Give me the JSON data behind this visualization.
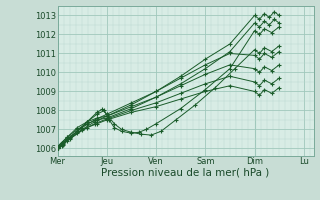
{
  "bg_color": "#c8ddd5",
  "plot_bg": "#d8ece5",
  "grid_color_major": "#a0c8bc",
  "grid_color_minor": "#b8d8ce",
  "line_color": "#1a5c2a",
  "marker": "+",
  "ylabel_ticks": [
    1006,
    1007,
    1008,
    1009,
    1010,
    1011,
    1012,
    1013
  ],
  "xlim": [
    0,
    5.2
  ],
  "ylim": [
    1005.6,
    1013.5
  ],
  "xlabel": "Pression niveau de la mer( hPa )",
  "xlabel_fontsize": 7.5,
  "tick_fontsize": 6,
  "day_labels": [
    "Mer",
    "Jeu",
    "Ven",
    "Sam",
    "Dim",
    "Lu"
  ],
  "day_positions": [
    0.0,
    1.0,
    2.0,
    3.0,
    4.0,
    5.0
  ],
  "lines": [
    {
      "x": [
        0.0,
        0.08,
        0.2,
        0.4,
        0.6,
        0.8,
        1.0,
        1.5,
        2.0,
        2.5,
        3.0,
        3.5,
        4.0,
        4.1,
        4.2,
        4.3,
        4.4,
        4.5
      ],
      "y": [
        1006.1,
        1006.3,
        1006.6,
        1007.1,
        1007.4,
        1007.6,
        1007.7,
        1008.3,
        1009.0,
        1009.8,
        1010.7,
        1011.5,
        1013.0,
        1012.8,
        1013.1,
        1012.9,
        1013.2,
        1013.0
      ]
    },
    {
      "x": [
        0.0,
        0.08,
        0.2,
        0.4,
        0.6,
        0.8,
        1.0,
        1.5,
        2.0,
        2.5,
        3.0,
        3.5,
        4.0,
        4.1,
        4.2,
        4.3,
        4.4,
        4.5
      ],
      "y": [
        1006.1,
        1006.3,
        1006.6,
        1007.0,
        1007.3,
        1007.5,
        1007.6,
        1008.1,
        1008.7,
        1009.4,
        1010.2,
        1011.1,
        1012.6,
        1012.4,
        1012.7,
        1012.5,
        1012.8,
        1012.6
      ]
    },
    {
      "x": [
        0.0,
        0.08,
        0.2,
        0.4,
        0.6,
        0.8,
        0.95,
        1.05,
        1.15,
        1.3,
        1.5,
        1.65,
        1.8,
        2.0,
        2.5,
        3.0,
        3.5,
        4.0,
        4.1,
        4.2,
        4.35,
        4.5
      ],
      "y": [
        1006.0,
        1006.2,
        1006.5,
        1006.9,
        1007.4,
        1007.8,
        1008.0,
        1007.5,
        1007.1,
        1006.9,
        1006.8,
        1006.85,
        1007.0,
        1007.3,
        1008.1,
        1009.1,
        1010.2,
        1012.2,
        1012.0,
        1012.3,
        1012.1,
        1012.4
      ]
    },
    {
      "x": [
        0.0,
        0.08,
        0.2,
        0.4,
        0.6,
        0.8,
        0.9,
        1.0,
        1.15,
        1.3,
        1.5,
        1.7,
        1.9,
        2.1,
        2.4,
        2.8,
        3.2,
        3.6,
        4.0,
        4.1,
        4.2,
        4.35,
        4.5
      ],
      "y": [
        1006.0,
        1006.2,
        1006.5,
        1006.9,
        1007.4,
        1007.9,
        1008.05,
        1007.8,
        1007.3,
        1007.0,
        1006.85,
        1006.75,
        1006.7,
        1006.9,
        1007.5,
        1008.3,
        1009.2,
        1010.2,
        1011.2,
        1011.0,
        1011.3,
        1011.1,
        1011.4
      ]
    },
    {
      "x": [
        0.0,
        0.1,
        0.25,
        0.5,
        0.75,
        1.0,
        1.5,
        2.0,
        2.5,
        3.0,
        3.5,
        4.0,
        4.1,
        4.2,
        4.35,
        4.5
      ],
      "y": [
        1006.05,
        1006.3,
        1006.6,
        1007.1,
        1007.5,
        1007.8,
        1008.4,
        1009.0,
        1009.7,
        1010.4,
        1011.0,
        1010.9,
        1010.7,
        1011.0,
        1010.8,
        1011.1
      ]
    },
    {
      "x": [
        0.0,
        0.1,
        0.25,
        0.5,
        0.75,
        1.0,
        1.5,
        2.0,
        2.5,
        3.0,
        3.5,
        4.0,
        4.1,
        4.2,
        4.35,
        4.5
      ],
      "y": [
        1006.0,
        1006.25,
        1006.55,
        1007.0,
        1007.4,
        1007.7,
        1008.2,
        1008.7,
        1009.3,
        1009.9,
        1010.4,
        1010.2,
        1010.0,
        1010.3,
        1010.1,
        1010.4
      ]
    },
    {
      "x": [
        0.0,
        0.1,
        0.25,
        0.5,
        0.75,
        1.0,
        1.5,
        2.0,
        2.5,
        3.0,
        3.5,
        4.0,
        4.1,
        4.2,
        4.35,
        4.5
      ],
      "y": [
        1006.0,
        1006.2,
        1006.5,
        1006.95,
        1007.3,
        1007.55,
        1008.0,
        1008.4,
        1008.9,
        1009.4,
        1009.8,
        1009.5,
        1009.3,
        1009.6,
        1009.4,
        1009.7
      ]
    },
    {
      "x": [
        0.0,
        0.08,
        0.2,
        0.4,
        0.6,
        0.8,
        1.0,
        1.5,
        2.0,
        2.5,
        3.0,
        3.5,
        4.0,
        4.1,
        4.2,
        4.35,
        4.5
      ],
      "y": [
        1006.0,
        1006.15,
        1006.4,
        1006.8,
        1007.1,
        1007.3,
        1007.5,
        1007.9,
        1008.2,
        1008.6,
        1009.0,
        1009.3,
        1009.0,
        1008.8,
        1009.1,
        1008.9,
        1009.2
      ]
    }
  ]
}
